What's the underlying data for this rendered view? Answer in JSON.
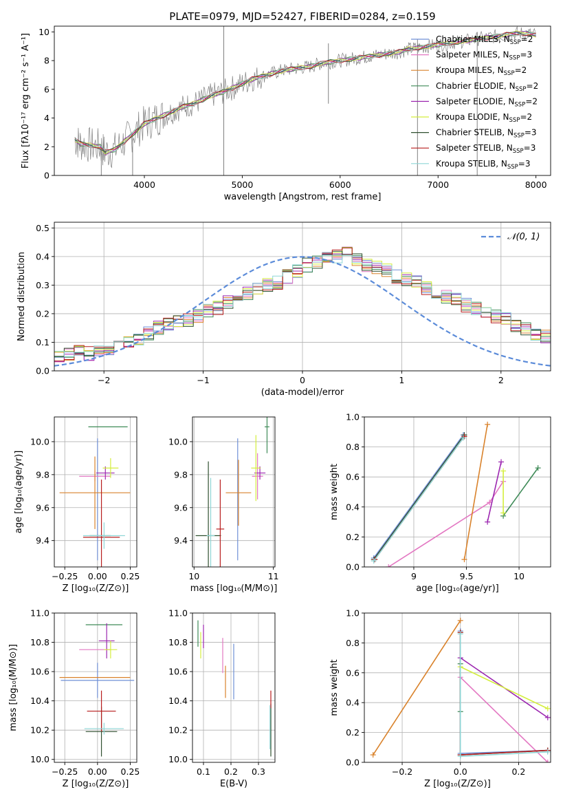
{
  "title": "PLATE=0979, MJD=52427, FIBERID=0284, z=0.159",
  "legend_entries": [
    {
      "name": "Chabrier MILES",
      "nssp": "2",
      "color": "#6f8fd6"
    },
    {
      "name": "Salpeter MILES",
      "nssp": "3",
      "color": "#e377c2"
    },
    {
      "name": "Kroupa MILES",
      "nssp": "2",
      "color": "#d9822b"
    },
    {
      "name": "Chabrier ELODIE",
      "nssp": "2",
      "color": "#3e8a57"
    },
    {
      "name": "Salpeter ELODIE",
      "nssp": "2",
      "color": "#9c27b0"
    },
    {
      "name": "Kroupa ELODIE",
      "nssp": "2",
      "color": "#d4ee3c"
    },
    {
      "name": "Chabrier STELIB",
      "nssp": "3",
      "color": "#2f4f2f"
    },
    {
      "name": "Salpeter STELIB",
      "nssp": "3",
      "color": "#b71c1c"
    },
    {
      "name": "Kroupa STELIB",
      "nssp": "3",
      "color": "#8ed6d6"
    }
  ],
  "chart_data": [
    {
      "type": "line",
      "id": "spectrum",
      "xlabel": "wavelength [Angstrom, rest frame]",
      "ylabel": "Flux [fλ10⁻¹⁷ erg cm⁻² s⁻¹ A⁻¹]",
      "xlim": [
        3080,
        8150
      ],
      "ylim": [
        0,
        10.4
      ],
      "xticks": [
        4000,
        5000,
        6000,
        7000,
        8000
      ],
      "yticks": [
        0,
        2,
        4,
        6,
        8,
        10
      ],
      "data_color": "#808080",
      "data_x": [
        3290,
        3350,
        3450,
        3550,
        3600,
        3700,
        3800,
        3900,
        4000,
        4100,
        4200,
        4300,
        4400,
        4500,
        4600,
        4700,
        4800,
        4900,
        5000,
        5100,
        5200,
        5300,
        5400,
        5500,
        5600,
        5700,
        5800,
        5900,
        6000,
        6100,
        6200,
        6300,
        6400,
        6500,
        6600,
        6700,
        6800,
        6900,
        7000,
        7100,
        7200,
        7300,
        7400,
        7500,
        7600,
        7700,
        7800,
        7900,
        8000
      ],
      "data_y": [
        2.5,
        2.2,
        2.1,
        2.0,
        1.6,
        1.8,
        2.4,
        3.0,
        3.6,
        3.9,
        4.2,
        4.5,
        4.8,
        5.0,
        5.3,
        5.6,
        5.8,
        6.1,
        6.4,
        6.7,
        6.9,
        7.1,
        7.3,
        7.4,
        7.5,
        7.6,
        7.8,
        7.9,
        8.0,
        8.1,
        8.2,
        8.3,
        8.4,
        8.5,
        8.6,
        8.8,
        8.9,
        9.0,
        9.1,
        9.2,
        9.3,
        9.4,
        9.5,
        9.6,
        9.7,
        9.8,
        9.9,
        9.9,
        9.8
      ],
      "spikes": [
        {
          "x": 4811,
          "y0": 0,
          "y1": 10.4
        },
        {
          "x": 5880,
          "y0": 5.0,
          "y1": 9.2
        },
        {
          "x": 6790,
          "y0": 0,
          "y1": 9.5
        },
        {
          "x": 7400,
          "y0": 0,
          "y1": 10.0
        },
        {
          "x": 3560,
          "y0": 0,
          "y1": 2.1
        },
        {
          "x": 3880,
          "y0": 0,
          "y1": 3.0
        }
      ]
    },
    {
      "type": "step",
      "id": "residuals",
      "xlabel": "(data-model)/error",
      "ylabel": "Normed distribution",
      "xlim": [
        -2.5,
        2.5
      ],
      "ylim": [
        0,
        0.52
      ],
      "xticks": [
        -2,
        -1,
        0,
        1,
        2
      ],
      "yticks": [
        0.0,
        0.1,
        0.2,
        0.3,
        0.4,
        0.5
      ],
      "legend": "𝒩(0, 1)",
      "gauss_color": "#5b8bd9",
      "bin_edges_start": -2.5,
      "bin_width": 0.1,
      "base_hist": [
        0.05,
        0.06,
        0.07,
        0.06,
        0.07,
        0.08,
        0.09,
        0.1,
        0.11,
        0.13,
        0.15,
        0.16,
        0.17,
        0.18,
        0.19,
        0.21,
        0.22,
        0.24,
        0.25,
        0.27,
        0.29,
        0.3,
        0.31,
        0.33,
        0.35,
        0.37,
        0.38,
        0.39,
        0.4,
        0.41,
        0.39,
        0.37,
        0.36,
        0.35,
        0.33,
        0.32,
        0.31,
        0.29,
        0.27,
        0.26,
        0.25,
        0.23,
        0.22,
        0.21,
        0.19,
        0.18,
        0.16,
        0.15,
        0.13,
        0.12,
        0.1,
        0.09,
        0.08,
        0.07,
        0.06,
        0.05,
        0.05,
        0.04,
        0.04,
        0.03,
        0.03
      ]
    },
    {
      "type": "errorbar",
      "id": "age_vs_Z",
      "xlabel": "Z [log₁₀(Z/Z⊙)]",
      "ylabel": "age  [log₁₀(age/yr)]",
      "xlim": [
        -0.33,
        0.3
      ],
      "ylim": [
        9.24,
        10.15
      ],
      "xticks": [
        -0.25,
        0.0,
        0.25
      ],
      "xticklabels": [
        "−0.25",
        "0.00",
        "0.25"
      ],
      "yticks": [
        9.4,
        9.6,
        9.8,
        10.0
      ],
      "points": [
        {
          "c": 0,
          "x": 0.0,
          "xe": 0.0,
          "y": 9.65,
          "ye": 0.37
        },
        {
          "c": 1,
          "x": -0.02,
          "xe": 0.12,
          "y": 9.79,
          "ye": 0.03
        },
        {
          "c": 2,
          "x": -0.02,
          "xe": 0.27,
          "y": 9.69,
          "ye": 0.22
        },
        {
          "c": 3,
          "x": 0.08,
          "xe": 0.15,
          "y": 10.09,
          "ye": 0.0
        },
        {
          "c": 4,
          "x": 0.06,
          "xe": 0.07,
          "y": 9.81,
          "ye": 0.04
        },
        {
          "c": 5,
          "x": 0.1,
          "xe": 0.06,
          "y": 9.84,
          "ye": 0.06
        },
        {
          "c": 6,
          "x": 0.02,
          "xe": 0.08,
          "y": 9.43,
          "ye": 0.0
        },
        {
          "c": 7,
          "x": 0.03,
          "xe": 0.14,
          "y": 9.42,
          "ye": 0.35
        },
        {
          "c": 8,
          "x": 0.05,
          "xe": 0.16,
          "y": 9.43,
          "ye": 0.08
        }
      ]
    },
    {
      "type": "errorbar",
      "id": "age_vs_mass",
      "xlabel": "mass [log₁₀(M/M⊙)]",
      "ylabel": "",
      "xlim": [
        9.98,
        11.02
      ],
      "ylim": [
        9.24,
        10.15
      ],
      "xticks": [
        10,
        11
      ],
      "yticks": [
        9.4,
        9.6,
        9.8,
        10.0
      ],
      "points": [
        {
          "c": 0,
          "x": 10.55,
          "xe": 0.0,
          "y": 9.65,
          "ye": 0.37
        },
        {
          "c": 1,
          "x": 10.8,
          "xe": 0.07,
          "y": 9.79,
          "ye": 0.14
        },
        {
          "c": 2,
          "x": 10.56,
          "xe": 0.16,
          "y": 9.69,
          "ye": 0.2
        },
        {
          "c": 3,
          "x": 10.92,
          "xe": 0.03,
          "y": 10.09,
          "ye": 0.16
        },
        {
          "c": 4,
          "x": 10.83,
          "xe": 0.07,
          "y": 9.81,
          "ye": 0.04
        },
        {
          "c": 5,
          "x": 10.78,
          "xe": 0.06,
          "y": 9.84,
          "ye": 0.2
        },
        {
          "c": 6,
          "x": 10.18,
          "xe": 0.16,
          "y": 9.43,
          "ye": 0.45
        },
        {
          "c": 7,
          "x": 10.33,
          "xe": 0.05,
          "y": 9.47,
          "ye": 0.3
        },
        {
          "c": 8,
          "x": 10.21,
          "xe": 0.05,
          "y": 9.43,
          "ye": 0.35
        }
      ]
    },
    {
      "type": "line",
      "id": "massweight_vs_age",
      "xlabel": "age  [log₁₀(age/yr)]",
      "ylabel": "mass weight",
      "xlim": [
        8.53,
        10.3
      ],
      "ylim": [
        0,
        1.0
      ],
      "xticks": [
        9.0,
        9.5,
        10.0
      ],
      "yticks": [
        0.0,
        0.2,
        0.4,
        0.6,
        0.8,
        1.0
      ],
      "lines": [
        {
          "c": 0,
          "pts": [
            [
              8.62,
              0.06
            ],
            [
              9.47,
              0.88
            ]
          ]
        },
        {
          "c": 1,
          "pts": [
            [
              8.76,
              0.0
            ],
            [
              9.72,
              0.43
            ],
            [
              9.85,
              0.57
            ]
          ]
        },
        {
          "c": 2,
          "pts": [
            [
              9.48,
              0.05
            ],
            [
              9.7,
              0.95
            ]
          ]
        },
        {
          "c": 3,
          "pts": [
            [
              9.85,
              0.34
            ],
            [
              10.18,
              0.66
            ]
          ]
        },
        {
          "c": 4,
          "pts": [
            [
              9.7,
              0.3
            ],
            [
              9.83,
              0.7
            ]
          ]
        },
        {
          "c": 5,
          "pts": [
            [
              9.85,
              0.36
            ],
            [
              9.85,
              0.64
            ]
          ]
        },
        {
          "c": 6,
          "pts": [
            [
              8.62,
              0.05
            ],
            [
              9.48,
              0.88
            ]
          ]
        },
        {
          "c": 7,
          "pts": [
            [
              8.63,
              0.05
            ],
            [
              9.48,
              0.87
            ]
          ]
        },
        {
          "c": 8,
          "pts": [
            [
              8.62,
              0.04
            ],
            [
              9.47,
              0.86
            ]
          ]
        }
      ]
    },
    {
      "type": "errorbar",
      "id": "mass_vs_Z",
      "xlabel": "Z [log₁₀(Z/Z⊙)]",
      "ylabel": "mass [log₁₀(M/M⊙)]",
      "xlim": [
        -0.33,
        0.3
      ],
      "ylim": [
        9.98,
        11.0
      ],
      "xticks": [
        -0.25,
        0.0,
        0.25
      ],
      "xticklabels": [
        "−0.25",
        "0.00",
        "0.25"
      ],
      "yticks": [
        10.0,
        10.2,
        10.4,
        10.6,
        10.8,
        11.0
      ],
      "points": [
        {
          "c": 0,
          "x": 0.0,
          "xe": 0.28,
          "y": 10.54,
          "ye": 0.12
        },
        {
          "c": 1,
          "x": -0.02,
          "xe": 0.12,
          "y": 10.75,
          "ye": 0.0
        },
        {
          "c": 2,
          "x": -0.02,
          "xe": 0.27,
          "y": 10.56,
          "ye": 0.0
        },
        {
          "c": 3,
          "x": 0.05,
          "xe": 0.14,
          "y": 10.92,
          "ye": 0.0
        },
        {
          "c": 4,
          "x": 0.07,
          "xe": 0.06,
          "y": 10.81,
          "ye": 0.12
        },
        {
          "c": 5,
          "x": 0.1,
          "xe": 0.05,
          "y": 10.75,
          "ye": 0.06
        },
        {
          "c": 6,
          "x": 0.03,
          "xe": 0.12,
          "y": 10.19,
          "ye": 0.17
        },
        {
          "c": 7,
          "x": 0.03,
          "xe": 0.11,
          "y": 10.33,
          "ye": 0.14
        },
        {
          "c": 8,
          "x": 0.05,
          "xe": 0.15,
          "y": 10.21,
          "ye": 0.04
        }
      ]
    },
    {
      "type": "errorbar",
      "id": "mass_vs_EBV",
      "xlabel": "E(B-V)",
      "ylabel": "",
      "xlim": [
        0.06,
        0.36
      ],
      "ylim": [
        9.98,
        11.0
      ],
      "xticks": [
        0.1,
        0.2,
        0.3
      ],
      "yticks": [
        10.0,
        10.2,
        10.4,
        10.6,
        10.8,
        11.0
      ],
      "points": [
        {
          "c": 0,
          "x": 0.21,
          "xe": 0.0,
          "y": 10.6,
          "ye": 0.19
        },
        {
          "c": 1,
          "x": 0.17,
          "xe": 0.0,
          "y": 10.71,
          "ye": 0.12
        },
        {
          "c": 2,
          "x": 0.18,
          "xe": 0.0,
          "y": 10.53,
          "ye": 0.11
        },
        {
          "c": 3,
          "x": 0.08,
          "xe": 0.0,
          "y": 10.86,
          "ye": 0.09
        },
        {
          "c": 4,
          "x": 0.1,
          "xe": 0.0,
          "y": 10.84,
          "ye": 0.08
        },
        {
          "c": 5,
          "x": 0.09,
          "xe": 0.0,
          "y": 10.78,
          "ye": 0.09
        },
        {
          "c": 6,
          "x": 0.345,
          "xe": 0.0,
          "y": 10.2,
          "ye": 0.18
        },
        {
          "c": 7,
          "x": 0.345,
          "xe": 0.0,
          "y": 10.41,
          "ye": 0.06
        },
        {
          "c": 8,
          "x": 0.342,
          "xe": 0.0,
          "y": 10.22,
          "ye": 0.15
        }
      ]
    },
    {
      "type": "line",
      "id": "massweight_vs_Z",
      "xlabel": "Z [log₁₀(Z/Z⊙)]",
      "ylabel": "mass weight",
      "xlim": [
        -0.33,
        0.31
      ],
      "ylim": [
        0,
        1.0
      ],
      "xticks": [
        -0.2,
        0.0,
        0.2
      ],
      "xticklabels": [
        "−0.2",
        "0.0",
        "0.2"
      ],
      "yticks": [
        0.0,
        0.2,
        0.4,
        0.6,
        0.8,
        1.0
      ],
      "lines": [
        {
          "c": 0,
          "pts": [
            [
              0.0,
              0.88
            ],
            [
              0.0,
              0.06
            ],
            [
              0.3,
              0.08
            ]
          ]
        },
        {
          "c": 1,
          "pts": [
            [
              0.0,
              0.57
            ],
            [
              0.3,
              0.0
            ]
          ]
        },
        {
          "c": 2,
          "pts": [
            [
              -0.3,
              0.05
            ],
            [
              0.0,
              0.95
            ]
          ]
        },
        {
          "c": 3,
          "pts": [
            [
              0.0,
              0.66
            ],
            [
              0.0,
              0.34
            ]
          ]
        },
        {
          "c": 4,
          "pts": [
            [
              0.0,
              0.7
            ],
            [
              0.3,
              0.3
            ]
          ]
        },
        {
          "c": 5,
          "pts": [
            [
              0.0,
              0.64
            ],
            [
              0.3,
              0.36
            ]
          ]
        },
        {
          "c": 6,
          "pts": [
            [
              0.0,
              0.87
            ],
            [
              0.0,
              0.05
            ],
            [
              0.3,
              0.08
            ]
          ]
        },
        {
          "c": 7,
          "pts": [
            [
              0.0,
              0.87
            ],
            [
              0.0,
              0.05
            ],
            [
              0.3,
              0.08
            ]
          ]
        },
        {
          "c": 8,
          "pts": [
            [
              0.0,
              0.86
            ],
            [
              0.0,
              0.04
            ],
            [
              0.3,
              0.07
            ]
          ]
        }
      ]
    }
  ]
}
